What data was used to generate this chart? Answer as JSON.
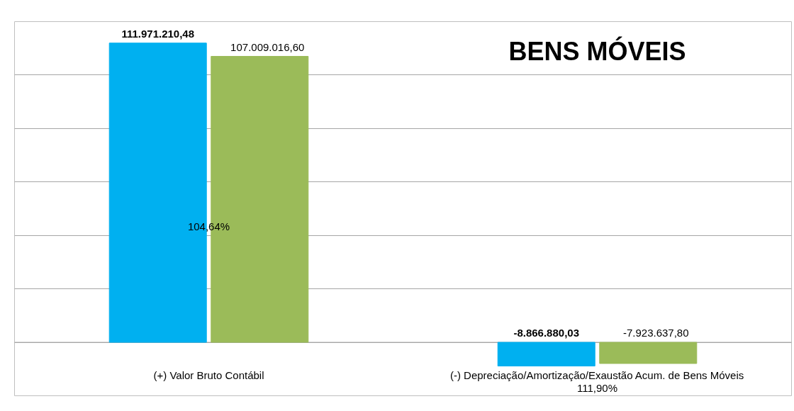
{
  "chart_data": {
    "type": "bar",
    "title": "BENS MÓVEIS",
    "categories": [
      "(+) Valor Bruto Contábil",
      "(-) Depreciação/Amortização/Exaustão Acum. de Bens Móveis"
    ],
    "series": [
      {
        "color": "#00b0f0",
        "values": [
          111971210.48,
          -8866880.03
        ],
        "value_labels": [
          "111.971.210,48",
          "-8.866.880,03"
        ]
      },
      {
        "color": "#9bbb59",
        "values": [
          107009016.6,
          -7923637.8
        ],
        "value_labels": [
          "107.009.016,60",
          "-7.923.637,80"
        ]
      }
    ],
    "annotations": [
      "104,64%",
      "111,90%"
    ],
    "ylim": [
      -20000000,
      120000000
    ],
    "yticks": [
      {
        "value": -20000000,
        "label": null
      },
      {
        "value": 0,
        "label": null
      },
      {
        "value": 20000000,
        "label": null
      },
      {
        "value": 40000000,
        "label": null
      },
      {
        "value": 60000000,
        "label": null
      },
      {
        "value": 80000000,
        "label": null
      },
      {
        "value": 100000000,
        "label": null
      },
      {
        "value": 120000000,
        "label": null
      }
    ],
    "grid": "y",
    "tick_labels": false
  }
}
